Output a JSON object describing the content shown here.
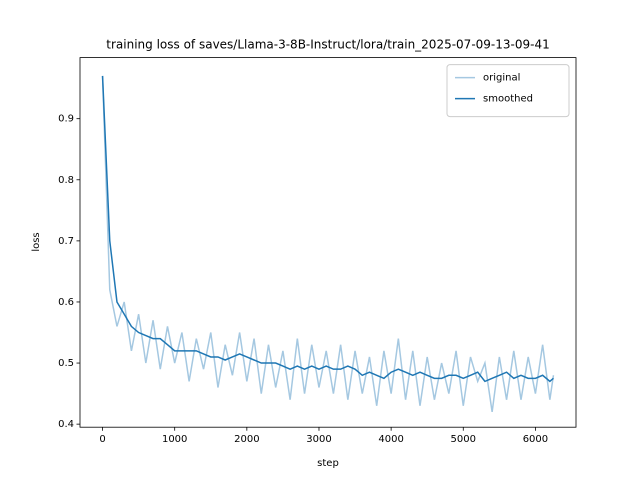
{
  "chart_data": {
    "type": "line",
    "title": "training loss of saves/Llama-3-8B-Instruct/lora/train_2025-07-09-13-09-41",
    "xlabel": "step",
    "ylabel": "loss",
    "x": [
      0,
      100,
      200,
      300,
      400,
      500,
      600,
      700,
      800,
      900,
      1000,
      1100,
      1200,
      1300,
      1400,
      1500,
      1600,
      1700,
      1800,
      1900,
      2000,
      2100,
      2200,
      2300,
      2400,
      2500,
      2600,
      2700,
      2800,
      2900,
      3000,
      3100,
      3200,
      3300,
      3400,
      3500,
      3600,
      3700,
      3800,
      3900,
      4000,
      4100,
      4200,
      4300,
      4400,
      4500,
      4600,
      4700,
      4800,
      4900,
      5000,
      5100,
      5200,
      5300,
      5400,
      5500,
      5600,
      5700,
      5800,
      5900,
      6000,
      6100,
      6200,
      6250
    ],
    "series": [
      {
        "name": "original",
        "color": "#a5c8e1",
        "values": [
          0.97,
          0.62,
          0.56,
          0.6,
          0.52,
          0.58,
          0.5,
          0.57,
          0.49,
          0.56,
          0.5,
          0.55,
          0.47,
          0.54,
          0.49,
          0.55,
          0.46,
          0.53,
          0.48,
          0.55,
          0.47,
          0.54,
          0.45,
          0.53,
          0.46,
          0.52,
          0.44,
          0.54,
          0.45,
          0.53,
          0.46,
          0.52,
          0.45,
          0.53,
          0.44,
          0.52,
          0.45,
          0.51,
          0.43,
          0.52,
          0.45,
          0.54,
          0.44,
          0.52,
          0.43,
          0.51,
          0.44,
          0.5,
          0.45,
          0.52,
          0.43,
          0.51,
          0.47,
          0.5,
          0.42,
          0.51,
          0.44,
          0.52,
          0.44,
          0.51,
          0.45,
          0.53,
          0.44,
          0.48
        ]
      },
      {
        "name": "smoothed",
        "color": "#1f77b4",
        "values": [
          0.97,
          0.7,
          0.6,
          0.58,
          0.56,
          0.55,
          0.545,
          0.54,
          0.54,
          0.53,
          0.52,
          0.52,
          0.52,
          0.52,
          0.515,
          0.51,
          0.51,
          0.505,
          0.51,
          0.515,
          0.51,
          0.505,
          0.5,
          0.5,
          0.5,
          0.495,
          0.49,
          0.495,
          0.49,
          0.495,
          0.49,
          0.495,
          0.49,
          0.49,
          0.495,
          0.49,
          0.48,
          0.485,
          0.48,
          0.475,
          0.485,
          0.49,
          0.485,
          0.48,
          0.485,
          0.48,
          0.475,
          0.475,
          0.48,
          0.48,
          0.475,
          0.48,
          0.485,
          0.47,
          0.475,
          0.48,
          0.485,
          0.475,
          0.48,
          0.475,
          0.475,
          0.48,
          0.47,
          0.475
        ]
      }
    ],
    "xlim": [
      -312.5,
      6562.5
    ],
    "xticks": [
      0,
      1000,
      2000,
      3000,
      4000,
      5000,
      6000
    ],
    "ylim": [
      0.395,
      1.0
    ],
    "yticks": [
      0.4,
      0.5,
      0.6,
      0.7,
      0.8,
      0.9
    ],
    "legend": "upper right"
  }
}
